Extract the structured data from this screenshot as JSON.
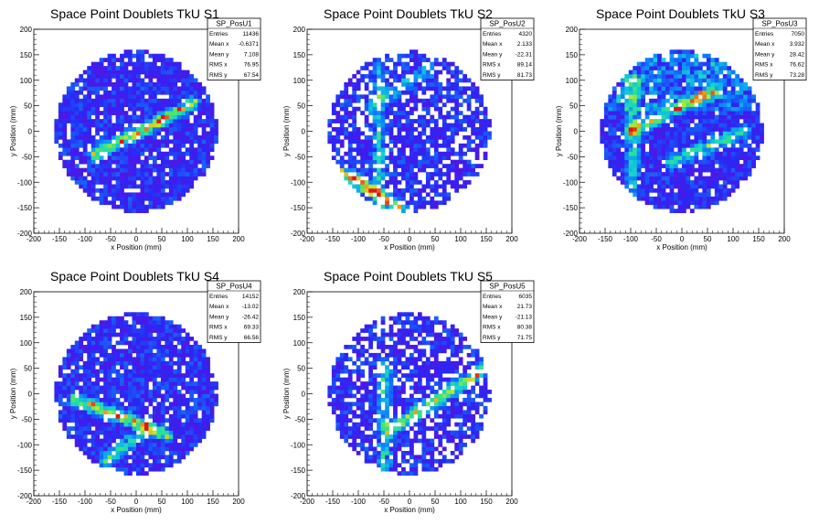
{
  "chart_data": [
    {
      "type": "heatmap",
      "title": "Space Point Doublets TkU S1",
      "xlabel": "x Position (mm)",
      "ylabel": "y Position (mm)",
      "xlim": [
        -200,
        200
      ],
      "ylim": [
        -200,
        200
      ],
      "x_ticks": [
        "-200",
        "-150",
        "-100",
        "-50",
        "0",
        "50",
        "100",
        "150",
        "200"
      ],
      "y_ticks": [
        "-200",
        "-150",
        "-100",
        "-50",
        "0",
        "50",
        "100",
        "150",
        "200"
      ],
      "stats": {
        "name": "SP_PosU1",
        "rows": [
          [
            "Entries",
            "11436"
          ],
          [
            "Mean x",
            "-0.6371"
          ],
          [
            "Mean y",
            "7.108"
          ],
          [
            "RMS x",
            "76.95"
          ],
          [
            "RMS y",
            "67.54"
          ]
        ]
      },
      "features": [
        {
          "kind": "line",
          "x1": -80,
          "y1": -45,
          "x2": 110,
          "y2": 55,
          "strength": 0.75
        }
      ]
    },
    {
      "type": "heatmap",
      "title": "Space Point Doublets TkU S2",
      "xlabel": "x Position (mm)",
      "ylabel": "y Position (mm)",
      "xlim": [
        -200,
        200
      ],
      "ylim": [
        -200,
        200
      ],
      "x_ticks": [
        "-200",
        "-150",
        "-100",
        "-50",
        "0",
        "50",
        "100",
        "150",
        "200"
      ],
      "y_ticks": [
        "-200",
        "-150",
        "-100",
        "-50",
        "0",
        "50",
        "100",
        "150",
        "200"
      ],
      "stats": {
        "name": "SP_PosU2",
        "rows": [
          [
            "Entries",
            "4320"
          ],
          [
            "Mean x",
            "2.133"
          ],
          [
            "Mean y",
            "-22.31"
          ],
          [
            "RMS x",
            "89.14"
          ],
          [
            "RMS y",
            "81.73"
          ]
        ]
      },
      "features": [
        {
          "kind": "line",
          "x1": -130,
          "y1": -80,
          "x2": -20,
          "y2": -150,
          "strength": 0.8
        },
        {
          "kind": "line",
          "x1": -60,
          "y1": -150,
          "x2": -60,
          "y2": 120,
          "strength": 0.35
        },
        {
          "kind": "line",
          "x1": -80,
          "y1": 50,
          "x2": 40,
          "y2": 120,
          "strength": 0.35
        }
      ]
    },
    {
      "type": "heatmap",
      "title": "Space Point Doublets TkU S3",
      "xlabel": "x Position (mm)",
      "ylabel": "y Position (mm)",
      "xlim": [
        -200,
        200
      ],
      "ylim": [
        -200,
        200
      ],
      "x_ticks": [
        "-200",
        "-150",
        "-100",
        "-50",
        "0",
        "50",
        "100",
        "150",
        "200"
      ],
      "y_ticks": [
        "-200",
        "-150",
        "-100",
        "-50",
        "0",
        "50",
        "100",
        "150",
        "200"
      ],
      "stats": {
        "name": "SP_PosU3",
        "rows": [
          [
            "Entries",
            "7050"
          ],
          [
            "Mean x",
            "3.932"
          ],
          [
            "Mean y",
            "28.42"
          ],
          [
            "RMS x",
            "76.62"
          ],
          [
            "RMS y",
            "73.28"
          ]
        ]
      },
      "features": [
        {
          "kind": "line",
          "x1": -100,
          "y1": 0,
          "x2": 60,
          "y2": 80,
          "strength": 0.6
        },
        {
          "kind": "line",
          "x1": -20,
          "y1": -60,
          "x2": 120,
          "y2": 0,
          "strength": 0.55
        },
        {
          "kind": "line",
          "x1": -95,
          "y1": -130,
          "x2": -95,
          "y2": 100,
          "strength": 0.4
        },
        {
          "kind": "band",
          "y_min": 40,
          "y_max": 150,
          "strength": 0.3
        }
      ]
    },
    {
      "type": "heatmap",
      "title": "Space Point Doublets TkU S4",
      "xlabel": "x Position (mm)",
      "ylabel": "y Position (mm)",
      "xlim": [
        -200,
        200
      ],
      "ylim": [
        -200,
        200
      ],
      "x_ticks": [
        "-200",
        "-150",
        "-100",
        "-50",
        "0",
        "50",
        "100",
        "150",
        "200"
      ],
      "y_ticks": [
        "-200",
        "-150",
        "-100",
        "-50",
        "0",
        "50",
        "100",
        "150",
        "200"
      ],
      "stats": {
        "name": "SP_PosU4",
        "rows": [
          [
            "Entries",
            "14152"
          ],
          [
            "Mean x",
            "-13.02"
          ],
          [
            "Mean y",
            "-26.42"
          ],
          [
            "RMS x",
            "69.33"
          ],
          [
            "RMS y",
            "66.56"
          ]
        ]
      },
      "features": [
        {
          "kind": "line",
          "x1": -120,
          "y1": -10,
          "x2": 60,
          "y2": -80,
          "strength": 0.7
        },
        {
          "kind": "line",
          "x1": -60,
          "y1": -130,
          "x2": 20,
          "y2": -70,
          "strength": 0.45
        }
      ]
    },
    {
      "type": "heatmap",
      "title": "Space Point Doublets TkU S5",
      "xlabel": "x Position (mm)",
      "ylabel": "y Position (mm)",
      "xlim": [
        -200,
        200
      ],
      "ylim": [
        -200,
        200
      ],
      "x_ticks": [
        "-200",
        "-150",
        "-100",
        "-50",
        "0",
        "50",
        "100",
        "150",
        "200"
      ],
      "y_ticks": [
        "-200",
        "-150",
        "-100",
        "-50",
        "0",
        "50",
        "100",
        "150",
        "200"
      ],
      "stats": {
        "name": "SP_PosU5",
        "rows": [
          [
            "Entries",
            "6035"
          ],
          [
            "Mean x",
            "21.73"
          ],
          [
            "Mean y",
            "-21.13"
          ],
          [
            "RMS x",
            "80.38"
          ],
          [
            "RMS y",
            "71.75"
          ]
        ]
      },
      "features": [
        {
          "kind": "line",
          "x1": -40,
          "y1": -70,
          "x2": 150,
          "y2": 50,
          "strength": 0.65
        },
        {
          "kind": "line",
          "x1": -50,
          "y1": -150,
          "x2": -50,
          "y2": 60,
          "strength": 0.4
        }
      ]
    }
  ]
}
